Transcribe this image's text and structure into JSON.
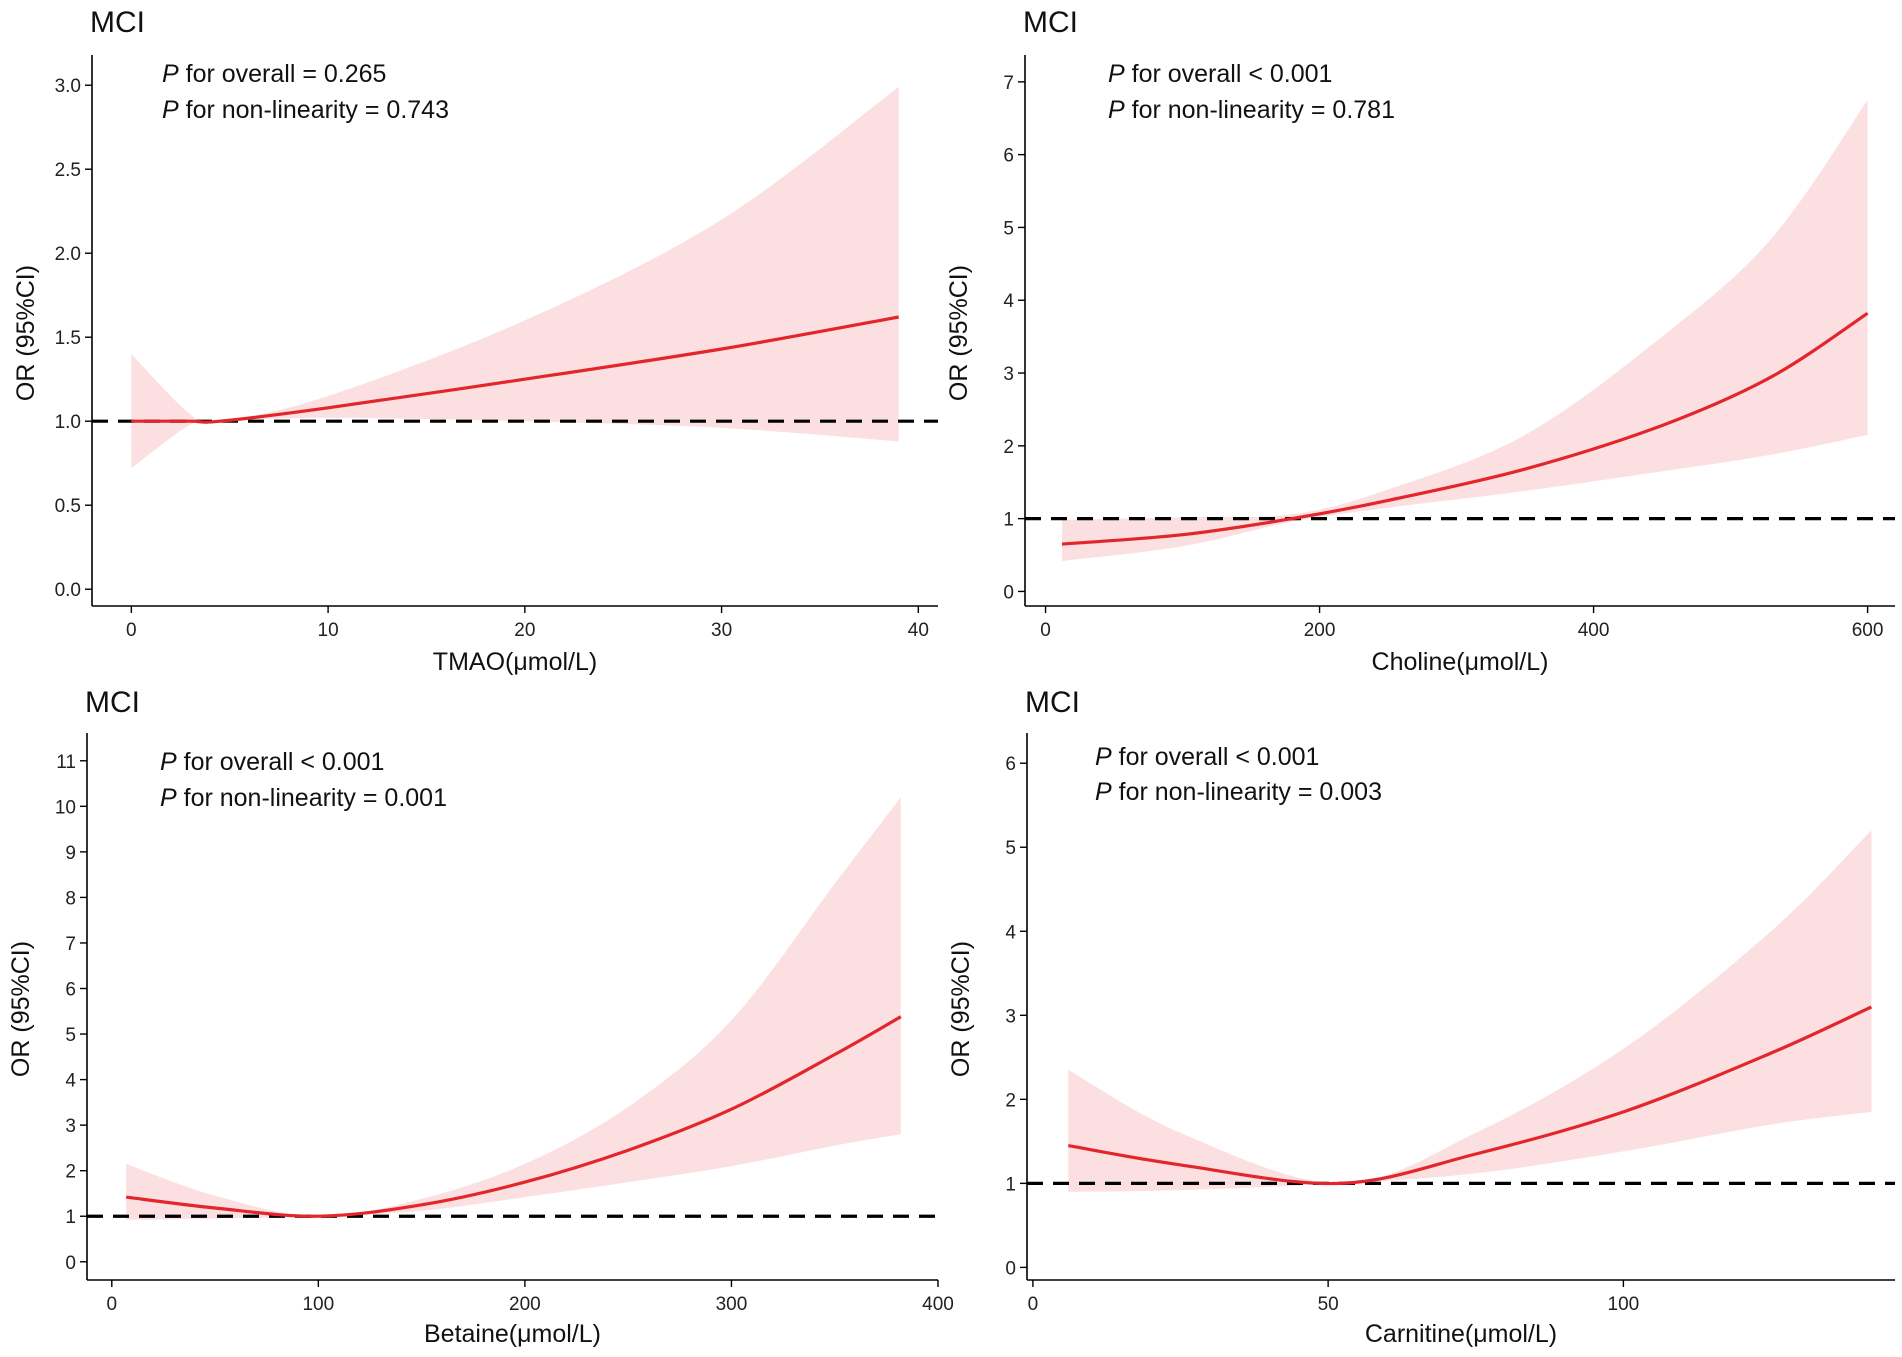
{
  "chart_data": [
    {
      "type": "line",
      "title": "MCI",
      "xlabel": "TMAO(μmol/L)",
      "ylabel": "OR (95%CI)",
      "xlim": [
        -2,
        41
      ],
      "ylim": [
        -0.1,
        3.15
      ],
      "xticks": [
        0,
        10,
        20,
        30,
        40
      ],
      "yticks": [
        "0.0",
        "0.5",
        "1.0",
        "1.5",
        "2.0",
        "2.5",
        "3.0"
      ],
      "reference_line": 1,
      "annotations": [
        {
          "p": "P",
          "text": " for overall = 0.265"
        },
        {
          "p": "P",
          "text": " for non-linearity = 0.743"
        }
      ],
      "x": [
        0,
        3,
        4.5,
        10,
        20,
        30,
        39
      ],
      "y": [
        1.0,
        1.0,
        1.0,
        1.08,
        1.25,
        1.43,
        1.62
      ],
      "ci_lower": [
        0.72,
        0.98,
        1.0,
        1.02,
        1.0,
        0.96,
        0.88
      ],
      "ci_upper": [
        1.4,
        1.04,
        1.0,
        1.15,
        1.6,
        2.2,
        2.99
      ]
    },
    {
      "type": "line",
      "title": "MCI",
      "xlabel": "Choline(μmol/L)",
      "ylabel": "OR (95%CI)",
      "xlim": [
        -15,
        620
      ],
      "ylim": [
        -0.2,
        7.3
      ],
      "xticks": [
        0,
        200,
        400,
        600
      ],
      "yticks": [
        "0",
        "1",
        "2",
        "3",
        "4",
        "5",
        "6",
        "7"
      ],
      "reference_line": 1,
      "annotations": [
        {
          "p": "P",
          "text": " for overall < 0.001"
        },
        {
          "p": "P",
          "text": " for non-linearity = 0.781"
        }
      ],
      "x": [
        12,
        100,
        180,
        250,
        350,
        450,
        530,
        600
      ],
      "y": [
        0.65,
        0.78,
        1.0,
        1.25,
        1.68,
        2.28,
        2.95,
        3.82
      ],
      "ci_lower": [
        0.42,
        0.62,
        0.96,
        1.15,
        1.38,
        1.65,
        1.88,
        2.15
      ],
      "ci_upper": [
        0.98,
        1.02,
        1.06,
        1.4,
        2.15,
        3.5,
        4.85,
        6.75
      ]
    },
    {
      "type": "line",
      "title": "MCI",
      "xlabel": "Betaine(μmol/L)",
      "ylabel": "OR (95%CI)",
      "xlim": [
        -12,
        400
      ],
      "ylim": [
        -0.4,
        11.5
      ],
      "xticks": [
        0,
        100,
        200,
        300,
        400
      ],
      "yticks": [
        "0",
        "1",
        "2",
        "3",
        "4",
        "5",
        "6",
        "7",
        "8",
        "9",
        "10",
        "11"
      ],
      "reference_line": 1,
      "annotations": [
        {
          "p": "P",
          "text": " for overall < 0.001"
        },
        {
          "p": "P",
          "text": " for non-linearity = 0.001"
        }
      ],
      "x": [
        7,
        50,
        100,
        150,
        200,
        250,
        300,
        350,
        382
      ],
      "y": [
        1.42,
        1.18,
        1.0,
        1.25,
        1.75,
        2.45,
        3.35,
        4.55,
        5.38
      ],
      "ci_lower": [
        0.92,
        0.95,
        1.0,
        1.12,
        1.42,
        1.75,
        2.1,
        2.55,
        2.8
      ],
      "ci_upper": [
        2.15,
        1.45,
        1.0,
        1.38,
        2.15,
        3.4,
        5.3,
        8.3,
        10.2
      ]
    },
    {
      "type": "line",
      "title": "MCI",
      "xlabel": "Carnitine(μmol/L)",
      "ylabel": "OR (95%CI)",
      "xlim": [
        -1,
        146
      ],
      "ylim": [
        -0.15,
        6.3
      ],
      "xticks": [
        0,
        50,
        100
      ],
      "yticks": [
        "0",
        "1",
        "2",
        "3",
        "4",
        "5",
        "6"
      ],
      "reference_line": 1,
      "annotations": [
        {
          "p": "P",
          "text": " for overall < 0.001"
        },
        {
          "p": "P",
          "text": " for non-linearity = 0.003"
        }
      ],
      "x": [
        6,
        25,
        52,
        75,
        100,
        125,
        142
      ],
      "y": [
        1.45,
        1.22,
        1.0,
        1.35,
        1.85,
        2.55,
        3.1
      ],
      "ci_lower": [
        0.9,
        0.92,
        1.0,
        1.12,
        1.38,
        1.7,
        1.85
      ],
      "ci_upper": [
        2.35,
        1.6,
        1.0,
        1.6,
        2.6,
        4.0,
        5.2
      ]
    }
  ],
  "colors": {
    "curve": "#e3262b",
    "band": "#fbdfe1",
    "reference": "#000000",
    "axis": "#000000"
  }
}
